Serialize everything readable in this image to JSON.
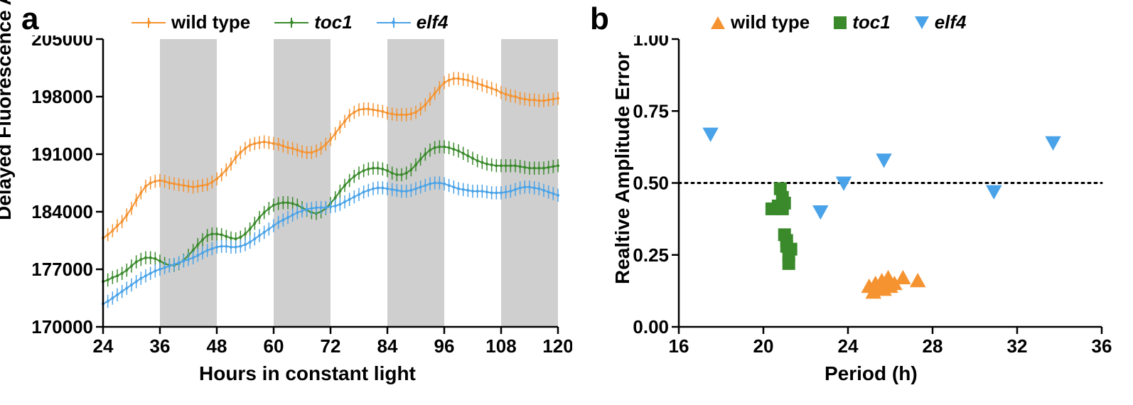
{
  "panel_a": {
    "label": "a",
    "type": "line-errorbar-timeseries",
    "xlabel": "Hours in constant light",
    "ylabel": "Delayed Fluorescence A.U.",
    "xlim": [
      24,
      120
    ],
    "ylim": [
      170000,
      205000
    ],
    "xticks": [
      24,
      36,
      48,
      60,
      72,
      84,
      96,
      108,
      120
    ],
    "yticks": [
      170000,
      177000,
      184000,
      191000,
      198000,
      205000
    ],
    "tick_fontsize": 26,
    "label_fontsize": 28,
    "background_color": "#ffffff",
    "subjective_night_bands_x": [
      [
        36,
        48
      ],
      [
        60,
        72
      ],
      [
        84,
        96
      ],
      [
        108,
        120
      ]
    ],
    "band_color": "#cfcfcf",
    "error_bar_halfwidth": 800,
    "line_width": 2,
    "marker_radius": 2,
    "legend": [
      {
        "label": "wild type",
        "color": "#f59331",
        "italic": false,
        "marker": "line-err"
      },
      {
        "label": "toc1",
        "color": "#3a8a2c",
        "italic": true,
        "marker": "line-err"
      },
      {
        "label": "elf4",
        "color": "#4aa3e8",
        "italic": true,
        "marker": "line-err"
      }
    ],
    "series": {
      "x": [
        24,
        25,
        26,
        27,
        28,
        29,
        30,
        31,
        32,
        33,
        34,
        35,
        36,
        37,
        38,
        39,
        40,
        41,
        42,
        43,
        44,
        45,
        46,
        47,
        48,
        49,
        50,
        51,
        52,
        53,
        54,
        55,
        56,
        57,
        58,
        59,
        60,
        61,
        62,
        63,
        64,
        65,
        66,
        67,
        68,
        69,
        70,
        71,
        72,
        73,
        74,
        75,
        76,
        77,
        78,
        79,
        80,
        81,
        82,
        83,
        84,
        85,
        86,
        87,
        88,
        89,
        90,
        91,
        92,
        93,
        94,
        95,
        96,
        97,
        98,
        99,
        100,
        101,
        102,
        103,
        104,
        105,
        106,
        107,
        108,
        109,
        110,
        111,
        112,
        113,
        114,
        115,
        116,
        117,
        118,
        119,
        120
      ],
      "wild_type": [
        180800,
        181200,
        181700,
        182300,
        182800,
        183600,
        184400,
        185400,
        186300,
        187100,
        187500,
        187700,
        187800,
        187700,
        187500,
        187400,
        187300,
        187200,
        187100,
        187000,
        187100,
        187200,
        187300,
        187600,
        188000,
        188500,
        189100,
        189800,
        190600,
        191200,
        191700,
        192100,
        192300,
        192400,
        192500,
        192400,
        192300,
        192200,
        192000,
        191800,
        191700,
        191500,
        191300,
        191200,
        191200,
        191400,
        191700,
        192200,
        192800,
        193500,
        194300,
        195000,
        195700,
        196100,
        196400,
        196500,
        196500,
        196400,
        196300,
        196200,
        196000,
        195900,
        195800,
        195800,
        195800,
        195900,
        196100,
        196500,
        197000,
        197700,
        198400,
        199100,
        199700,
        200000,
        200200,
        200200,
        200100,
        200000,
        199800,
        199600,
        199400,
        199200,
        199000,
        198800,
        198500,
        198300,
        198100,
        198000,
        197800,
        197700,
        197600,
        197600,
        197500,
        197500,
        197600,
        197700,
        197800
      ],
      "toc1": [
        175500,
        175700,
        176000,
        176200,
        176500,
        176900,
        177400,
        177900,
        178200,
        178400,
        178400,
        178300,
        178000,
        177700,
        177500,
        177500,
        177700,
        178100,
        178700,
        179300,
        180000,
        180600,
        181100,
        181300,
        181300,
        181200,
        181000,
        180800,
        180700,
        180900,
        181300,
        181900,
        182600,
        183300,
        183900,
        184400,
        184800,
        185000,
        185100,
        185100,
        185000,
        184800,
        184500,
        184200,
        183900,
        183800,
        184000,
        184400,
        185000,
        185700,
        186500,
        187200,
        187800,
        188300,
        188700,
        189000,
        189200,
        189300,
        189300,
        189200,
        189000,
        188700,
        188500,
        188500,
        188700,
        189100,
        189700,
        190400,
        191000,
        191500,
        191800,
        191900,
        191900,
        191800,
        191600,
        191400,
        191100,
        190800,
        190500,
        190200,
        190000,
        189800,
        189700,
        189600,
        189600,
        189600,
        189600,
        189600,
        189500,
        189400,
        189300,
        189300,
        189300,
        189300,
        189400,
        189500,
        189600
      ],
      "elf4": [
        172800,
        173100,
        173500,
        173900,
        174300,
        174700,
        175100,
        175500,
        175900,
        176200,
        176500,
        176800,
        177000,
        177200,
        177400,
        177600,
        177800,
        178000,
        178200,
        178400,
        178700,
        179000,
        179300,
        179500,
        179700,
        179800,
        179800,
        179700,
        179700,
        179800,
        180000,
        180300,
        180700,
        181100,
        181500,
        181900,
        182300,
        182700,
        183000,
        183300,
        183600,
        183900,
        184100,
        184300,
        184400,
        184500,
        184500,
        184500,
        184600,
        184700,
        184900,
        185200,
        185500,
        185800,
        186100,
        186400,
        186600,
        186800,
        186900,
        186900,
        186800,
        186700,
        186600,
        186500,
        186500,
        186600,
        186800,
        187000,
        187200,
        187400,
        187500,
        187500,
        187400,
        187200,
        187000,
        186800,
        186700,
        186600,
        186500,
        186500,
        186500,
        186400,
        186300,
        186300,
        186300,
        186400,
        186500,
        186700,
        186900,
        187000,
        187000,
        186900,
        186800,
        186600,
        186400,
        186200,
        186000
      ]
    },
    "colors": {
      "wild_type": "#f59331",
      "toc1": "#3a8a2c",
      "elf4": "#4aa3e8"
    }
  },
  "panel_b": {
    "label": "b",
    "type": "scatter",
    "xlabel": "Period (h)",
    "ylabel": "Realtive Amplitude Error",
    "xlim": [
      16,
      36
    ],
    "ylim": [
      0.0,
      1.0
    ],
    "xticks": [
      16,
      20,
      24,
      28,
      32,
      36
    ],
    "yticks": [
      0.0,
      0.25,
      0.5,
      0.75,
      1.0
    ],
    "ytick_labels": [
      "0.00",
      "0.25",
      "0.50",
      "0.75",
      "1.00"
    ],
    "tick_fontsize": 26,
    "label_fontsize": 28,
    "hline_y": 0.5,
    "hline_style": "dotted",
    "hline_color": "#000000",
    "marker_size": 18,
    "legend": [
      {
        "label": "wild type",
        "color": "#f59331",
        "italic": false,
        "marker": "triangle-up"
      },
      {
        "label": "toc1",
        "color": "#3a8a2c",
        "italic": true,
        "marker": "square"
      },
      {
        "label": "elf4",
        "color": "#4aa3e8",
        "italic": true,
        "marker": "triangle-down"
      }
    ],
    "points": {
      "wild_type": [
        [
          25.0,
          0.14
        ],
        [
          25.2,
          0.12
        ],
        [
          25.3,
          0.15
        ],
        [
          25.4,
          0.13
        ],
        [
          25.5,
          0.14
        ],
        [
          25.6,
          0.16
        ],
        [
          25.7,
          0.13
        ],
        [
          25.8,
          0.15
        ],
        [
          25.9,
          0.17
        ],
        [
          26.0,
          0.14
        ],
        [
          26.2,
          0.15
        ],
        [
          26.6,
          0.17
        ],
        [
          27.3,
          0.16
        ]
      ],
      "toc1": [
        [
          20.4,
          0.41
        ],
        [
          20.7,
          0.42
        ],
        [
          20.8,
          0.48
        ],
        [
          20.9,
          0.45
        ],
        [
          20.9,
          0.41
        ],
        [
          21.0,
          0.43
        ],
        [
          21.0,
          0.32
        ],
        [
          21.1,
          0.3
        ],
        [
          21.1,
          0.28
        ],
        [
          21.2,
          0.25
        ],
        [
          21.2,
          0.22
        ],
        [
          21.3,
          0.27
        ]
      ],
      "elf4": [
        [
          17.5,
          0.67
        ],
        [
          22.7,
          0.4
        ],
        [
          23.8,
          0.5
        ],
        [
          25.7,
          0.58
        ],
        [
          30.9,
          0.47
        ],
        [
          33.7,
          0.64
        ]
      ]
    },
    "colors": {
      "wild_type": "#f59331",
      "toc1": "#3a8a2c",
      "elf4": "#4aa3e8"
    }
  }
}
